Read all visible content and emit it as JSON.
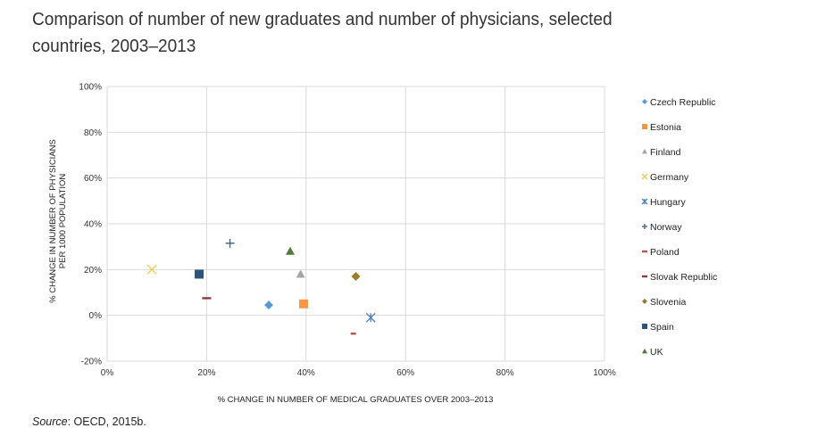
{
  "page": {
    "title": "Comparison of number of new graduates and number of physicians, selected countries, 2003–2013",
    "source_label": "Source",
    "source_text": ": OECD, 2015b."
  },
  "chart_data": {
    "type": "scatter",
    "title": "Comparison of number of new graduates and number of physicians, selected countries, 2003–2013",
    "xlabel": "% CHANGE IN NUMBER OF MEDICAL GRADUATES OVER 2003–2013",
    "ylabel": "% CHANGE IN NUMBER OF PHYSICIANS PER 1000  POPULATION",
    "xlim": [
      0,
      100
    ],
    "ylim": [
      -20,
      100
    ],
    "x_ticks": [
      "0%",
      "20%",
      "40%",
      "60%",
      "80%",
      "100%"
    ],
    "y_ticks": [
      "-20%",
      "0%",
      "20%",
      "40%",
      "60%",
      "80%",
      "100%"
    ],
    "grid": true,
    "legend_position": "right",
    "series": [
      {
        "name": "Czech Republic",
        "marker": "diamond",
        "color": "#5b9bd5",
        "x": 32.5,
        "y": 4.5
      },
      {
        "name": "Estonia",
        "marker": "square",
        "color": "#f79646",
        "x": 39.5,
        "y": 5
      },
      {
        "name": "Finland",
        "marker": "triangle",
        "color": "#a5a5a5",
        "x": 38.9,
        "y": 18
      },
      {
        "name": "Germany",
        "marker": "x",
        "color": "#f2c744",
        "x": 9,
        "y": 20
      },
      {
        "name": "Hungary",
        "marker": "star",
        "color": "#4f81bd",
        "x": 53,
        "y": -1
      },
      {
        "name": "Norway",
        "marker": "plus",
        "color": "#31647f",
        "x": 24.7,
        "y": 31.5
      },
      {
        "name": "Poland",
        "marker": "dash",
        "color": "#c0504d",
        "x": 49.5,
        "y": -8
      },
      {
        "name": "Slovak Republic",
        "marker": "dash",
        "color": "#8b3a3a",
        "x": 20,
        "y": 7.5
      },
      {
        "name": "Slovenia",
        "marker": "diamond",
        "color": "#9a7b2c",
        "x": 50,
        "y": 17
      },
      {
        "name": "Spain",
        "marker": "square",
        "color": "#2e5379",
        "x": 18.5,
        "y": 18
      },
      {
        "name": "UK",
        "marker": "triangle",
        "color": "#4f7a3a",
        "x": 36.8,
        "y": 28
      }
    ]
  }
}
